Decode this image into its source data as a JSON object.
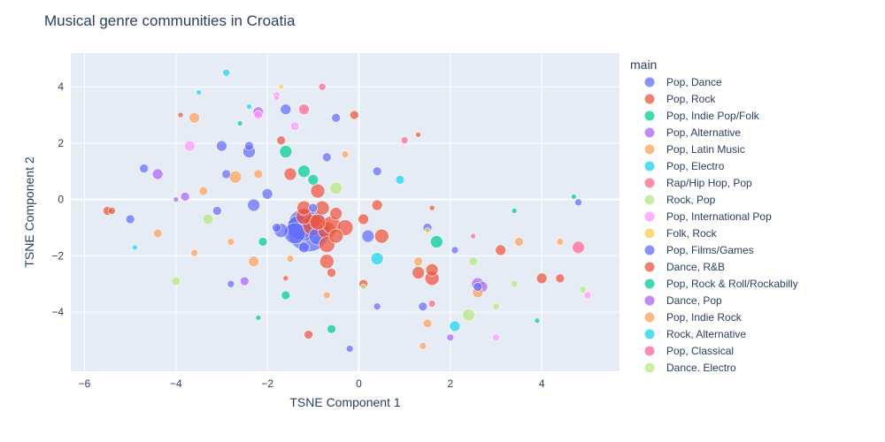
{
  "chart_data": {
    "type": "scatter",
    "title": "Musical genre communities in Croatia",
    "xlabel": "TSNE Component 1",
    "ylabel": "TSNE Component 2",
    "xlim": [
      -6.3,
      5.7
    ],
    "ylim": [
      -6.1,
      5.2
    ],
    "x_ticks": [
      -6,
      -4,
      -2,
      0,
      2,
      4
    ],
    "y_ticks": [
      -4,
      -2,
      0,
      2,
      4
    ],
    "grid": true,
    "legend_title": "main",
    "legend_position": "right",
    "series": [
      {
        "name": "Pop, Dance",
        "color": "#636efa",
        "points": [
          [
            -1.1,
            -1.1,
            24
          ],
          [
            -1.2,
            -0.9,
            18
          ],
          [
            -1.3,
            -1.0,
            14
          ],
          [
            -1.4,
            -1.2,
            12
          ],
          [
            -0.9,
            -1.3,
            10
          ],
          [
            -1.7,
            -1.1,
            8
          ],
          [
            -2.3,
            -0.2,
            7
          ],
          [
            -2.4,
            1.7,
            7
          ],
          [
            -1.6,
            3.2,
            6
          ],
          [
            -0.5,
            2.9,
            5
          ],
          [
            -3.0,
            1.9,
            6
          ],
          [
            -2.4,
            1.9,
            5
          ],
          [
            -2.9,
            0.9,
            5
          ],
          [
            -4.7,
            1.1,
            5
          ],
          [
            -2.0,
            0.2,
            6
          ],
          [
            -3.1,
            -0.4,
            5
          ],
          [
            -5.0,
            -0.7,
            5
          ],
          [
            -1.8,
            -1.0,
            5
          ],
          [
            -1.2,
            -1.7,
            6
          ],
          [
            -1.0,
            -0.3,
            5
          ],
          [
            -0.7,
            1.5,
            5
          ],
          [
            0.4,
            1.0,
            5
          ],
          [
            1.5,
            -1.0,
            5
          ],
          [
            0.2,
            -1.3,
            7
          ],
          [
            2.1,
            -1.8,
            4
          ],
          [
            1.4,
            -3.8,
            5
          ],
          [
            0.4,
            -3.8,
            4
          ],
          [
            -0.2,
            -5.3,
            4
          ],
          [
            -2.8,
            -3.0,
            4
          ],
          [
            4.8,
            -0.1,
            4
          ],
          [
            2.6,
            -3.1,
            5
          ]
        ]
      },
      {
        "name": "Pop, Rock",
        "color": "#ef553b",
        "points": [
          [
            -1.2,
            -0.6,
            9
          ],
          [
            -1.0,
            -0.9,
            12
          ],
          [
            -0.7,
            -1.1,
            10
          ],
          [
            -0.9,
            -0.8,
            9
          ],
          [
            -0.6,
            -0.9,
            10
          ],
          [
            -0.3,
            -1.0,
            9
          ],
          [
            -0.5,
            -1.3,
            8
          ],
          [
            -0.7,
            -1.6,
            9
          ],
          [
            -1.2,
            -0.3,
            8
          ],
          [
            -0.8,
            -0.3,
            8
          ],
          [
            -0.5,
            -0.5,
            7
          ],
          [
            -0.9,
            0.3,
            8
          ],
          [
            -1.5,
            0.9,
            7
          ],
          [
            -1.7,
            2.1,
            5
          ],
          [
            -0.1,
            3.0,
            5
          ],
          [
            -0.7,
            -2.2,
            8
          ],
          [
            -0.6,
            -2.6,
            5
          ],
          [
            0.1,
            -0.7,
            6
          ],
          [
            0.4,
            -0.2,
            6
          ],
          [
            0.5,
            -1.3,
            8
          ],
          [
            1.3,
            2.3,
            3
          ],
          [
            1.6,
            -0.3,
            3
          ],
          [
            1.6,
            -2.5,
            7
          ],
          [
            1.6,
            -2.8,
            8
          ],
          [
            1.3,
            -2.6,
            7
          ],
          [
            3.1,
            -1.8,
            6
          ],
          [
            4.0,
            -2.8,
            6
          ],
          [
            4.4,
            -2.8,
            5
          ],
          [
            -5.5,
            -0.4,
            5
          ],
          [
            -5.4,
            -0.4,
            4
          ],
          [
            -1.1,
            -4.8,
            5
          ],
          [
            0.1,
            -3.0,
            5
          ],
          [
            -1.6,
            -2.8,
            3
          ],
          [
            -3.9,
            3.0,
            3
          ]
        ]
      },
      {
        "name": "Pop, Indie Pop/Folk",
        "color": "#00cc96",
        "points": [
          [
            -1.6,
            1.7,
            7
          ],
          [
            -1.2,
            1.0,
            7
          ],
          [
            -1.0,
            0.7,
            6
          ],
          [
            1.7,
            -1.5,
            7
          ],
          [
            -2.1,
            -1.5,
            5
          ],
          [
            -1.6,
            -3.4,
            5
          ],
          [
            -0.6,
            -4.6,
            5
          ],
          [
            -2.2,
            -4.2,
            3
          ],
          [
            3.9,
            -4.3,
            3
          ],
          [
            4.7,
            0.1,
            3
          ],
          [
            3.4,
            -0.4,
            3
          ],
          [
            -2.6,
            2.7,
            3
          ]
        ]
      },
      {
        "name": "Pop, Alternative",
        "color": "#ab63fa",
        "points": [
          [
            -4.4,
            0.9,
            6
          ],
          [
            -3.8,
            0.1,
            5
          ],
          [
            -2.2,
            3.1,
            6
          ],
          [
            -2.5,
            -2.9,
            5
          ],
          [
            2.6,
            -3.0,
            7
          ],
          [
            2.7,
            -3.1,
            6
          ],
          [
            2.0,
            -4.9,
            4
          ],
          [
            -4.0,
            0.0,
            3
          ]
        ]
      },
      {
        "name": "Pop, Latin Music",
        "color": "#ffa15a",
        "points": [
          [
            -2.7,
            0.8,
            7
          ],
          [
            -3.6,
            2.9,
            6
          ],
          [
            -3.4,
            0.3,
            5
          ],
          [
            -2.2,
            0.9,
            5
          ],
          [
            -2.3,
            -2.2,
            6
          ],
          [
            -4.4,
            -1.2,
            5
          ],
          [
            -3.6,
            -1.9,
            4
          ],
          [
            -2.8,
            -1.5,
            4
          ],
          [
            -1.5,
            -2.1,
            4
          ],
          [
            1.3,
            -2.2,
            5
          ],
          [
            2.6,
            -3.3,
            6
          ],
          [
            3.5,
            -1.5,
            5
          ],
          [
            4.4,
            -1.5,
            4
          ],
          [
            1.5,
            -4.4,
            5
          ],
          [
            1.4,
            -5.2,
            4
          ],
          [
            -0.7,
            -3.4,
            4
          ],
          [
            -0.3,
            1.6,
            4
          ]
        ]
      },
      {
        "name": "Pop, Electro",
        "color": "#19d3f3",
        "points": [
          [
            0.4,
            -2.1,
            7
          ],
          [
            0.9,
            0.7,
            5
          ],
          [
            2.1,
            -4.5,
            6
          ],
          [
            -3.5,
            3.8,
            3
          ],
          [
            -2.9,
            4.5,
            4
          ],
          [
            -2.4,
            3.3,
            3
          ],
          [
            -4.9,
            -1.7,
            3
          ]
        ]
      },
      {
        "name": "Rap/Hip Hop, Pop",
        "color": "#ff6692",
        "points": [
          [
            -1.2,
            3.2,
            6
          ],
          [
            4.8,
            -1.7,
            7
          ],
          [
            -0.8,
            4.0,
            4
          ],
          [
            1.0,
            2.1,
            4
          ],
          [
            2.5,
            -1.3,
            3
          ],
          [
            1.6,
            -3.7,
            4
          ]
        ]
      },
      {
        "name": "Rock, Pop",
        "color": "#b6e880",
        "points": [
          [
            -0.5,
            0.4,
            7
          ],
          [
            2.4,
            -4.1,
            7
          ],
          [
            -3.3,
            -0.7,
            6
          ],
          [
            -4.0,
            -2.9,
            5
          ],
          [
            2.5,
            -2.2,
            5
          ],
          [
            3.4,
            -3.0,
            4
          ],
          [
            3.0,
            -3.8,
            4
          ],
          [
            4.9,
            -3.2,
            4
          ],
          [
            0.1,
            -3.1,
            3
          ]
        ]
      },
      {
        "name": "Pop, International Pop",
        "color": "#ff97ff",
        "points": [
          [
            -3.7,
            1.9,
            6
          ],
          [
            -2.2,
            3.0,
            5
          ],
          [
            -1.4,
            2.6,
            5
          ],
          [
            -1.8,
            3.6,
            3
          ],
          [
            -1.8,
            3.7,
            4
          ],
          [
            3.0,
            -4.9,
            4
          ],
          [
            5.0,
            -3.4,
            4
          ]
        ]
      },
      {
        "name": "Folk, Rock",
        "color": "#fecb52",
        "points": [
          [
            -1.7,
            4.0,
            3
          ],
          [
            1.5,
            -1.1,
            3
          ]
        ]
      }
    ]
  },
  "legend": [
    {
      "label": "Pop, Dance",
      "color": "#636efa"
    },
    {
      "label": "Pop, Rock",
      "color": "#ef553b"
    },
    {
      "label": "Pop, Indie Pop/Folk",
      "color": "#00cc96"
    },
    {
      "label": "Pop, Alternative",
      "color": "#ab63fa"
    },
    {
      "label": "Pop, Latin Music",
      "color": "#ffa15a"
    },
    {
      "label": "Pop, Electro",
      "color": "#19d3f3"
    },
    {
      "label": "Rap/Hip Hop, Pop",
      "color": "#ff6692"
    },
    {
      "label": "Rock, Pop",
      "color": "#b6e880"
    },
    {
      "label": "Pop, International Pop",
      "color": "#ff97ff"
    },
    {
      "label": "Folk, Rock",
      "color": "#fecb52"
    },
    {
      "label": "Pop, Films/Games",
      "color": "#636efa"
    },
    {
      "label": "Dance, R&B",
      "color": "#ef553b"
    },
    {
      "label": "Pop, Rock & Roll/Rockabilly",
      "color": "#00cc96"
    },
    {
      "label": "Dance, Pop",
      "color": "#ab63fa"
    },
    {
      "label": "Pop, Indie Rock",
      "color": "#ffa15a"
    },
    {
      "label": "Rock, Alternative",
      "color": "#19d3f3"
    },
    {
      "label": "Pop, Classical",
      "color": "#ff6692"
    },
    {
      "label": "Dance. Electro",
      "color": "#b6e880"
    }
  ]
}
